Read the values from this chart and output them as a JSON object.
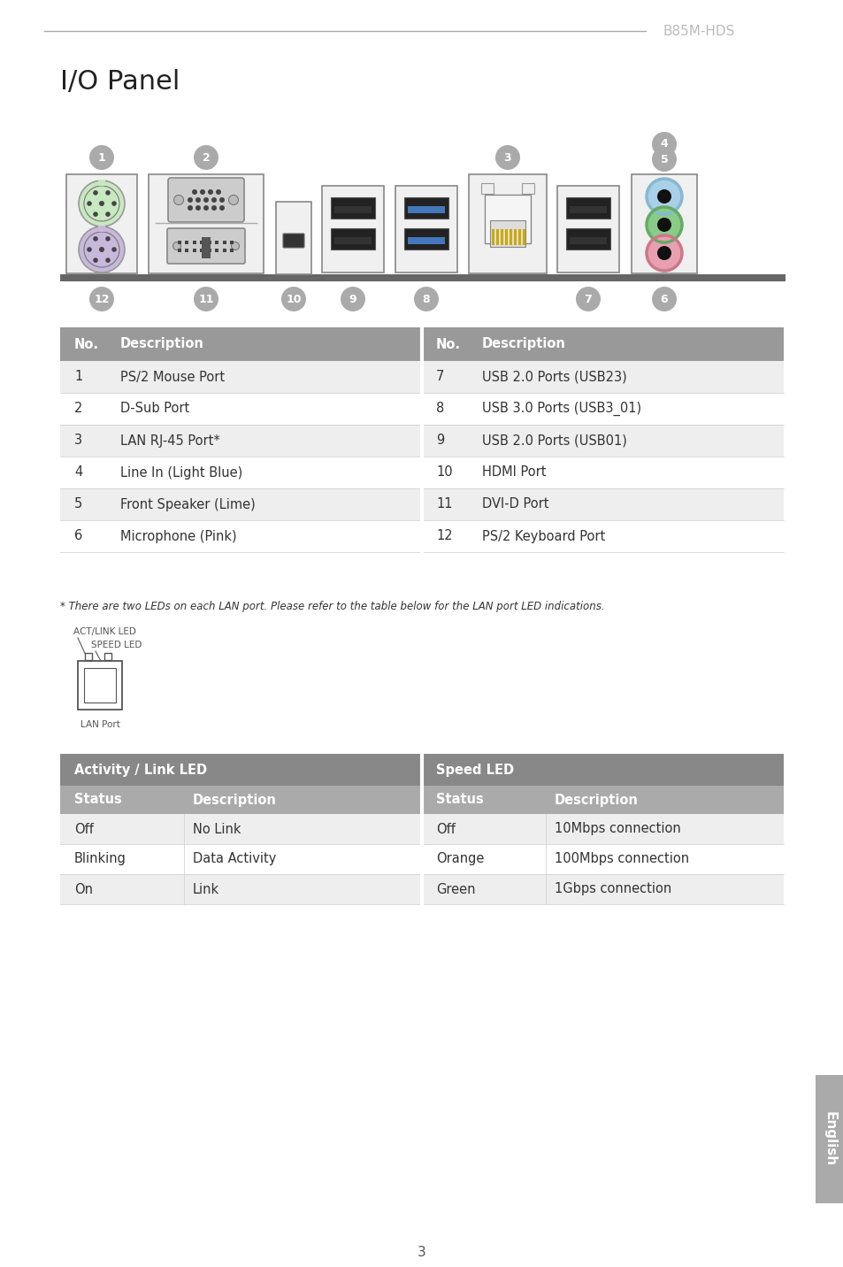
{
  "page_title": "B85M-HDS",
  "section_title": "I/O Panel",
  "header_line_color": "#aaaaaa",
  "bg_color": "#ffffff",
  "text_color": "#333333",
  "gray_text": "#bbbbbb",
  "table1": {
    "header_bg": "#999999",
    "header_text": "#ffffff",
    "row_bg_odd": "#eeeeee",
    "row_bg_even": "#ffffff",
    "cols": [
      "No.",
      "Description",
      "No.",
      "Description"
    ],
    "rows": [
      [
        "1",
        "PS/2 Mouse Port",
        "7",
        "USB 2.0 Ports (USB23)"
      ],
      [
        "2",
        "D-Sub Port",
        "8",
        "USB 3.0 Ports (USB3_01)"
      ],
      [
        "3",
        "LAN RJ-45 Port*",
        "9",
        "USB 2.0 Ports (USB01)"
      ],
      [
        "4",
        "Line In (Light Blue)",
        "10",
        "HDMI Port"
      ],
      [
        "5",
        "Front Speaker (Lime)",
        "11",
        "DVI-D Port"
      ],
      [
        "6",
        "Microphone (Pink)",
        "12",
        "PS/2 Keyboard Port"
      ]
    ]
  },
  "table2": {
    "header_bg": "#888888",
    "subheader_bg": "#aaaaaa",
    "row_bg_odd": "#eeeeee",
    "row_bg_even": "#ffffff",
    "section1_header": "Activity / Link LED",
    "section2_header": "Speed LED",
    "cols": [
      "Status",
      "Description",
      "Status",
      "Description"
    ],
    "rows": [
      [
        "Off",
        "No Link",
        "Off",
        "10Mbps connection"
      ],
      [
        "Blinking",
        "Data Activity",
        "Orange",
        "100Mbps connection"
      ],
      [
        "On",
        "Link",
        "Green",
        "1Gbps connection"
      ]
    ]
  },
  "footnote": "* There are two LEDs on each LAN port. Please refer to the table below for the LAN port LED indications.",
  "lan_labels": [
    "ACT/LINK LED",
    "SPEED LED",
    "LAN Port"
  ],
  "english_tab_bg": "#aaaaaa",
  "page_num": "3",
  "circle_num_bg": "#aaaaaa",
  "circle_num_fg": "#ffffff"
}
